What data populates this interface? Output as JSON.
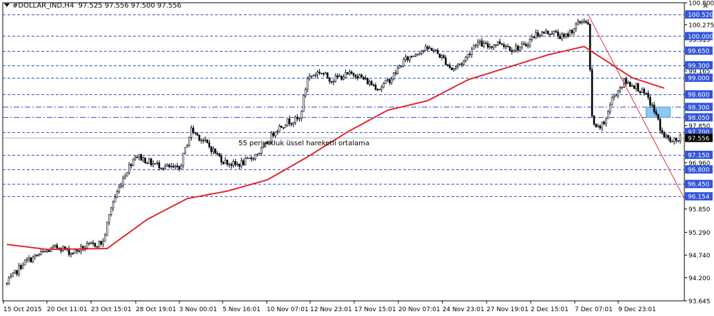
{
  "header": {
    "symbol": "#DOLLAR_IND,H4",
    "ohlc": "97.525 97.556 97.500 97.556",
    "menu_icon": "triangle-down-icon",
    "close_icon": "close-icon"
  },
  "annotation": "55 periyotluk üssel hareketli ortalama",
  "colors": {
    "background": "#ffffff",
    "grid": "#000000",
    "level_line": "#3050d0",
    "level_label_bg": "#3355dd",
    "ema": "#e0262a",
    "trendline": "#e03030",
    "zone": "#8ec8f0",
    "current_price_bg": "#000000",
    "candle": "#000000"
  },
  "chart_data": {
    "type": "candlestick",
    "title": "",
    "xlabel": "",
    "ylabel": "",
    "ylim": [
      93.645,
      100.8
    ],
    "price_axis_ticks": [
      100.8,
      100.275,
      99.915,
      99.3,
      99.165,
      98.6,
      97.85,
      96.96,
      96.45,
      95.85,
      95.29,
      94.74,
      94.2,
      93.645
    ],
    "levels": [
      100.52,
      100.0,
      99.65,
      99.3,
      99.0,
      98.6,
      98.3,
      98.05,
      97.7,
      97.15,
      96.8,
      96.45,
      96.154
    ],
    "level_styles": [
      "dashed",
      "dashed",
      "dashed",
      "dashed",
      "dashed",
      "dashed",
      "dashdot",
      "dashdot",
      "dashed",
      "dashed",
      "dashed",
      "dashed",
      "dashed"
    ],
    "current_price": 97.556,
    "time_labels": [
      "15 Oct 2015",
      "20 Oct 11:01",
      "23 Oct 15:01",
      "28 Oct 19:01",
      "3 Nov 00:01",
      "5 Nov 16:01",
      "10 Nov 07:01",
      "12 Nov 23:01",
      "17 Nov 15:01",
      "20 Nov 07:01",
      "24 Nov 23:01",
      "27 Nov 19:01",
      "2 Dec 15:01",
      "7 Dec 07:01",
      "9 Dec 23:01"
    ],
    "close_path_anchors": [
      [
        0,
        94.05
      ],
      [
        8,
        94.55
      ],
      [
        18,
        94.8
      ],
      [
        26,
        94.95
      ],
      [
        32,
        94.8
      ],
      [
        40,
        94.95
      ],
      [
        48,
        95.05
      ],
      [
        52,
        95.9
      ],
      [
        58,
        96.6
      ],
      [
        64,
        97.15
      ],
      [
        72,
        96.95
      ],
      [
        80,
        96.85
      ],
      [
        86,
        96.8
      ],
      [
        92,
        97.75
      ],
      [
        100,
        97.4
      ],
      [
        108,
        97.0
      ],
      [
        114,
        96.9
      ],
      [
        120,
        97.0
      ],
      [
        128,
        97.3
      ],
      [
        134,
        97.75
      ],
      [
        140,
        97.95
      ],
      [
        146,
        98.0
      ],
      [
        150,
        99.0
      ],
      [
        156,
        99.15
      ],
      [
        162,
        98.95
      ],
      [
        168,
        99.05
      ],
      [
        174,
        99.1
      ],
      [
        180,
        98.9
      ],
      [
        186,
        98.75
      ],
      [
        192,
        99.0
      ],
      [
        198,
        99.4
      ],
      [
        206,
        99.65
      ],
      [
        212,
        99.7
      ],
      [
        218,
        99.45
      ],
      [
        222,
        99.2
      ],
      [
        228,
        99.4
      ],
      [
        234,
        99.85
      ],
      [
        240,
        99.75
      ],
      [
        246,
        99.85
      ],
      [
        252,
        99.7
      ],
      [
        258,
        99.75
      ],
      [
        264,
        100.05
      ],
      [
        272,
        100.1
      ],
      [
        278,
        99.95
      ],
      [
        284,
        100.25
      ],
      [
        288,
        100.4
      ],
      [
        290,
        100.25
      ],
      [
        292,
        98.05
      ],
      [
        294,
        97.75
      ],
      [
        298,
        97.9
      ],
      [
        302,
        98.5
      ],
      [
        308,
        98.9
      ],
      [
        314,
        98.8
      ],
      [
        320,
        98.5
      ],
      [
        324,
        98.1
      ],
      [
        327,
        97.65
      ],
      [
        332,
        97.45
      ],
      [
        336,
        97.55
      ]
    ],
    "ema_anchors": [
      [
        0,
        95.0
      ],
      [
        20,
        94.88
      ],
      [
        50,
        94.9
      ],
      [
        70,
        95.6
      ],
      [
        90,
        96.1
      ],
      [
        110,
        96.28
      ],
      [
        130,
        96.55
      ],
      [
        150,
        97.1
      ],
      [
        170,
        97.7
      ],
      [
        190,
        98.22
      ],
      [
        210,
        98.45
      ],
      [
        230,
        98.95
      ],
      [
        250,
        99.25
      ],
      [
        270,
        99.55
      ],
      [
        288,
        99.75
      ],
      [
        296,
        99.5
      ],
      [
        312,
        99.0
      ],
      [
        328,
        98.75
      ]
    ],
    "trendline": [
      [
        0,
        100.52
      ],
      [
        359,
        96.1
      ]
    ],
    "zone_box": {
      "i0": 319,
      "i1": 331,
      "y0": 98.3,
      "y1": 98.05
    },
    "candle_count": 337
  }
}
